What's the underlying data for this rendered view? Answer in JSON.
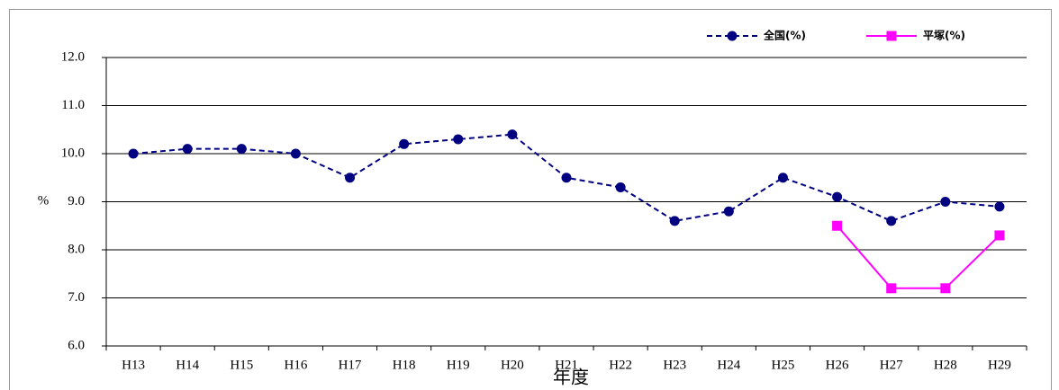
{
  "chart_data": {
    "type": "line",
    "categories": [
      "H13",
      "H14",
      "H15",
      "H16",
      "H17",
      "H18",
      "H19",
      "H20",
      "H21",
      "H22",
      "H23",
      "H24",
      "H25",
      "H26",
      "H27",
      "H28",
      "H29"
    ],
    "series": [
      {
        "name": "全国(%)",
        "color": "#000080",
        "dash": true,
        "marker": "circle",
        "values": [
          10.0,
          10.1,
          10.1,
          10.0,
          9.5,
          10.2,
          10.3,
          10.4,
          9.5,
          9.3,
          8.6,
          8.8,
          9.5,
          9.1,
          8.6,
          9.0,
          8.9
        ]
      },
      {
        "name": "平塚(%)",
        "color": "#ff00ff",
        "dash": false,
        "marker": "square",
        "values": [
          null,
          null,
          null,
          null,
          null,
          null,
          null,
          null,
          null,
          null,
          null,
          null,
          null,
          8.5,
          7.2,
          7.2,
          8.3
        ]
      }
    ],
    "ylabel": "%",
    "xlabel": "年度",
    "ylim": [
      6,
      12
    ],
    "yticks": [
      {
        "value": 6,
        "label": "6.0"
      },
      {
        "value": 7,
        "label": "7.0"
      },
      {
        "value": 8,
        "label": "8.0"
      },
      {
        "value": 9,
        "label": "9.0"
      },
      {
        "value": 10,
        "label": "10.0"
      },
      {
        "value": 11,
        "label": "11.0"
      },
      {
        "value": 12,
        "label": "12.0"
      }
    ],
    "grid": true
  }
}
